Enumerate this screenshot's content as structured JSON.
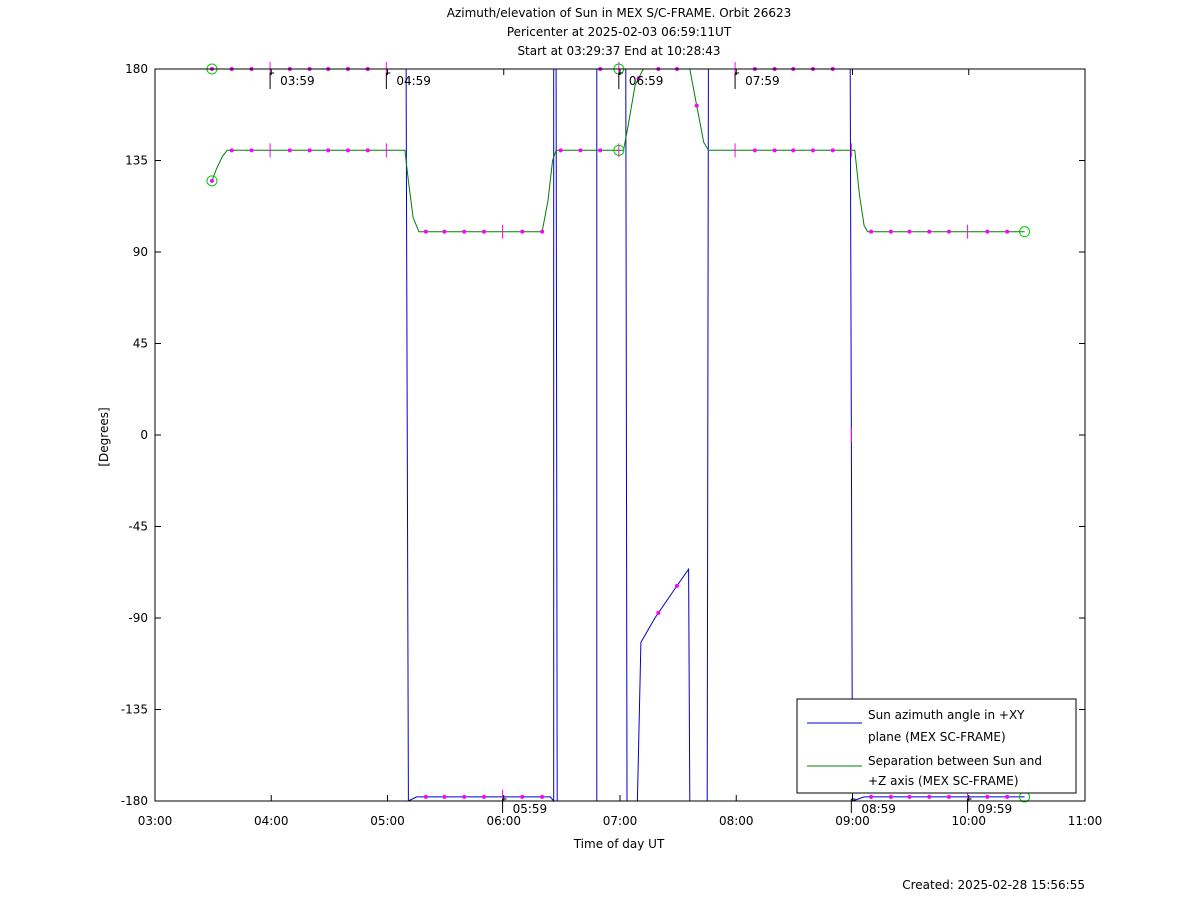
{
  "chart_data": {
    "type": "line",
    "title_lines": [
      "Azimuth/elevation of Sun in MEX S/C-FRAME.  Orbit 26623",
      "Pericenter at 2025-02-03 06:59:11UT",
      "Start at 03:29:37 End at 10:28:43"
    ],
    "xlabel": "Time of day UT",
    "ylabel": "[Degrees]",
    "xlim": [
      3.0,
      11.0
    ],
    "ylim": [
      -180,
      180
    ],
    "x_ticks": [
      {
        "value": 3,
        "label": "03:00"
      },
      {
        "value": 4,
        "label": "04:00"
      },
      {
        "value": 5,
        "label": "05:00"
      },
      {
        "value": 6,
        "label": "06:00"
      },
      {
        "value": 7,
        "label": "07:00"
      },
      {
        "value": 8,
        "label": "08:00"
      },
      {
        "value": 9,
        "label": "09:00"
      },
      {
        "value": 10,
        "label": "10:00"
      },
      {
        "value": 11,
        "label": "11:00"
      }
    ],
    "y_ticks": [
      180,
      135,
      90,
      45,
      0,
      -45,
      -90,
      -135,
      -180
    ],
    "legend_position": "bottom-right",
    "series": [
      {
        "name": "Sun azimuth angle in +XY plane (MEX SC-FRAME)",
        "legend_lines": [
          "Sun azimuth angle in +XY",
          "plane (MEX SC-FRAME)"
        ],
        "color": "#0000cc",
        "points": [
          [
            3.49,
            180
          ],
          [
            5.16,
            180
          ],
          [
            5.18,
            -180
          ],
          [
            5.25,
            -178
          ],
          [
            6.4,
            -178
          ],
          [
            6.43,
            -180
          ],
          [
            6.43,
            180
          ],
          [
            6.45,
            180
          ],
          [
            6.46,
            -180
          ],
          [
            6.8,
            -180
          ],
          [
            6.8,
            180
          ],
          [
            7.05,
            180
          ],
          [
            7.06,
            -180
          ],
          [
            7.15,
            -180
          ],
          [
            7.18,
            -102
          ],
          [
            7.3,
            -90
          ],
          [
            7.48,
            -75
          ],
          [
            7.59,
            -66
          ],
          [
            7.6,
            -180
          ],
          [
            7.75,
            -180
          ],
          [
            7.76,
            180
          ],
          [
            8.98,
            180
          ],
          [
            9.0,
            -180
          ],
          [
            9.1,
            -178
          ],
          [
            10.48,
            -178
          ]
        ]
      },
      {
        "name": "Separation between Sun and +Z axis (MEX SC-FRAME)",
        "legend_lines": [
          "Separation between Sun and",
          "+Z axis (MEX SC-FRAME)"
        ],
        "color": "#008000",
        "points": [
          [
            3.49,
            125
          ],
          [
            3.53,
            131
          ],
          [
            3.58,
            137
          ],
          [
            3.62,
            140
          ],
          [
            5.15,
            140
          ],
          [
            5.18,
            125
          ],
          [
            5.22,
            107
          ],
          [
            5.27,
            100
          ],
          [
            6.33,
            100
          ],
          [
            6.38,
            115
          ],
          [
            6.42,
            135
          ],
          [
            6.45,
            140
          ],
          [
            7.03,
            140
          ],
          [
            7.07,
            152
          ],
          [
            7.13,
            172
          ],
          [
            7.2,
            180
          ],
          [
            7.6,
            180
          ],
          [
            7.66,
            162
          ],
          [
            7.72,
            144
          ],
          [
            7.76,
            140
          ],
          [
            9.02,
            140
          ],
          [
            9.06,
            118
          ],
          [
            9.1,
            103
          ],
          [
            9.13,
            100
          ],
          [
            10.48,
            100
          ]
        ]
      }
    ],
    "time_markers": {
      "upper": [
        {
          "x": 3.99,
          "label": "03:59"
        },
        {
          "x": 4.99,
          "label": "04:59"
        },
        {
          "x": 6.99,
          "label": "06:59"
        },
        {
          "x": 7.99,
          "label": "07:59"
        }
      ],
      "lower": [
        {
          "x": 5.99,
          "label": "05:59"
        },
        {
          "x": 8.99,
          "label": "08:59"
        },
        {
          "x": 9.99,
          "label": "09:59"
        }
      ]
    },
    "sample_markers": {
      "color": "#ff00ff",
      "azimuth_x": [
        3.49,
        3.66,
        3.83,
        4.16,
        4.33,
        4.49,
        4.66,
        4.83,
        5.33,
        5.49,
        5.66,
        5.83,
        6.16,
        6.33,
        6.83,
        7.33,
        7.49,
        8.16,
        8.33,
        8.49,
        8.66,
        8.83,
        9.16,
        9.33,
        9.49,
        9.66,
        9.83,
        10.16,
        10.33
      ],
      "separation_x": [
        3.49,
        3.66,
        3.83,
        4.16,
        4.33,
        4.49,
        4.66,
        4.83,
        5.33,
        5.49,
        5.66,
        5.83,
        6.16,
        6.33,
        6.49,
        6.66,
        6.83,
        7.16,
        7.33,
        7.49,
        7.66,
        8.16,
        8.33,
        8.49,
        8.66,
        8.83,
        9.16,
        9.33,
        9.49,
        9.66,
        9.83,
        10.16,
        10.33
      ]
    },
    "endpoint_circles": {
      "color": "#00cc00",
      "points": [
        [
          3.49,
          180
        ],
        [
          3.49,
          125
        ],
        [
          6.99,
          180
        ],
        [
          6.99,
          140
        ],
        [
          10.48,
          -178
        ],
        [
          10.48,
          100
        ]
      ]
    }
  },
  "footer": {
    "created": "Created: 2025-02-28 15:56:55"
  }
}
